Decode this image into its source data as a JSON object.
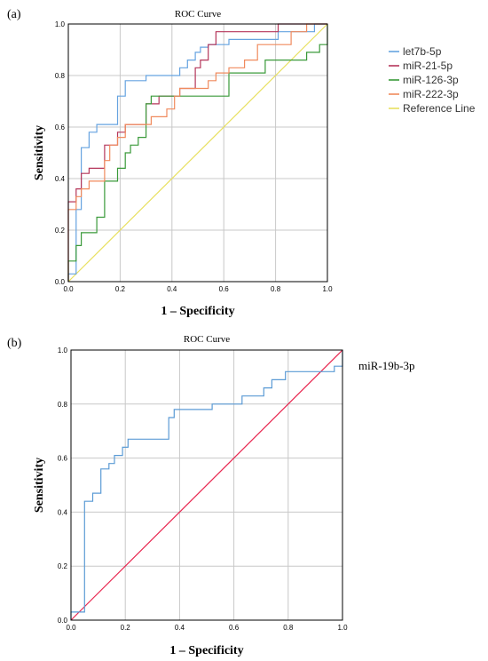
{
  "panels": [
    {
      "label": "(a)"
    },
    {
      "label": "(b)"
    }
  ],
  "chart_data": [
    {
      "type": "line",
      "title": "ROC Curve",
      "xlabel": "1 – Specificity",
      "ylabel": "Sensitivity",
      "xlim": [
        0,
        1
      ],
      "ylim": [
        0,
        1
      ],
      "x_ticks": [
        "0.0",
        "0.2",
        "0.4",
        "0.6",
        "0.8",
        "1.0"
      ],
      "y_ticks": [
        "0.0",
        "0.2",
        "0.4",
        "0.6",
        "0.8",
        "1.0"
      ],
      "grid": true,
      "legend": "right",
      "series": [
        {
          "name": "let7b-5p",
          "color": "#66a3e0",
          "step": true,
          "points": [
            [
              0,
              0
            ],
            [
              0,
              0.03
            ],
            [
              0.03,
              0.03
            ],
            [
              0.03,
              0.28
            ],
            [
              0.05,
              0.28
            ],
            [
              0.05,
              0.52
            ],
            [
              0.08,
              0.52
            ],
            [
              0.08,
              0.58
            ],
            [
              0.11,
              0.58
            ],
            [
              0.11,
              0.61
            ],
            [
              0.19,
              0.61
            ],
            [
              0.19,
              0.72
            ],
            [
              0.22,
              0.72
            ],
            [
              0.22,
              0.78
            ],
            [
              0.3,
              0.78
            ],
            [
              0.3,
              0.8
            ],
            [
              0.43,
              0.8
            ],
            [
              0.43,
              0.83
            ],
            [
              0.46,
              0.83
            ],
            [
              0.46,
              0.86
            ],
            [
              0.49,
              0.86
            ],
            [
              0.49,
              0.89
            ],
            [
              0.51,
              0.89
            ],
            [
              0.51,
              0.91
            ],
            [
              0.54,
              0.91
            ],
            [
              0.54,
              0.92
            ],
            [
              0.62,
              0.92
            ],
            [
              0.62,
              0.94
            ],
            [
              0.81,
              0.94
            ],
            [
              0.81,
              0.97
            ],
            [
              0.95,
              0.97
            ],
            [
              0.95,
              1.0
            ],
            [
              1.0,
              1.0
            ]
          ]
        },
        {
          "name": "miR-21-5p",
          "color": "#b5365a",
          "step": true,
          "points": [
            [
              0,
              0
            ],
            [
              0,
              0.31
            ],
            [
              0.03,
              0.31
            ],
            [
              0.03,
              0.36
            ],
            [
              0.05,
              0.36
            ],
            [
              0.05,
              0.42
            ],
            [
              0.08,
              0.42
            ],
            [
              0.08,
              0.44
            ],
            [
              0.14,
              0.44
            ],
            [
              0.14,
              0.53
            ],
            [
              0.19,
              0.53
            ],
            [
              0.19,
              0.58
            ],
            [
              0.22,
              0.58
            ],
            [
              0.22,
              0.61
            ],
            [
              0.3,
              0.61
            ],
            [
              0.3,
              0.69
            ],
            [
              0.35,
              0.69
            ],
            [
              0.35,
              0.72
            ],
            [
              0.43,
              0.72
            ],
            [
              0.43,
              0.75
            ],
            [
              0.49,
              0.75
            ],
            [
              0.49,
              0.83
            ],
            [
              0.51,
              0.83
            ],
            [
              0.51,
              0.86
            ],
            [
              0.54,
              0.86
            ],
            [
              0.54,
              0.92
            ],
            [
              0.57,
              0.92
            ],
            [
              0.57,
              0.97
            ],
            [
              0.81,
              0.97
            ],
            [
              0.81,
              1.0
            ],
            [
              1.0,
              1.0
            ]
          ]
        },
        {
          "name": "miR-126-3p",
          "color": "#3a9a3a",
          "step": true,
          "points": [
            [
              0,
              0
            ],
            [
              0,
              0.08
            ],
            [
              0.03,
              0.08
            ],
            [
              0.03,
              0.14
            ],
            [
              0.05,
              0.14
            ],
            [
              0.05,
              0.19
            ],
            [
              0.11,
              0.19
            ],
            [
              0.11,
              0.25
            ],
            [
              0.14,
              0.25
            ],
            [
              0.14,
              0.39
            ],
            [
              0.19,
              0.39
            ],
            [
              0.19,
              0.44
            ],
            [
              0.22,
              0.44
            ],
            [
              0.22,
              0.5
            ],
            [
              0.24,
              0.5
            ],
            [
              0.24,
              0.53
            ],
            [
              0.27,
              0.53
            ],
            [
              0.27,
              0.56
            ],
            [
              0.3,
              0.56
            ],
            [
              0.3,
              0.69
            ],
            [
              0.32,
              0.69
            ],
            [
              0.32,
              0.72
            ],
            [
              0.62,
              0.72
            ],
            [
              0.62,
              0.81
            ],
            [
              0.76,
              0.81
            ],
            [
              0.76,
              0.86
            ],
            [
              0.92,
              0.86
            ],
            [
              0.92,
              0.89
            ],
            [
              0.97,
              0.89
            ],
            [
              0.97,
              0.92
            ],
            [
              1.0,
              0.92
            ],
            [
              1.0,
              1.0
            ]
          ]
        },
        {
          "name": "miR-222-3p",
          "color": "#f08a5d",
          "step": true,
          "points": [
            [
              0,
              0
            ],
            [
              0,
              0.28
            ],
            [
              0.03,
              0.28
            ],
            [
              0.03,
              0.33
            ],
            [
              0.05,
              0.33
            ],
            [
              0.05,
              0.36
            ],
            [
              0.08,
              0.36
            ],
            [
              0.08,
              0.39
            ],
            [
              0.14,
              0.39
            ],
            [
              0.14,
              0.47
            ],
            [
              0.16,
              0.47
            ],
            [
              0.16,
              0.53
            ],
            [
              0.19,
              0.53
            ],
            [
              0.19,
              0.56
            ],
            [
              0.22,
              0.56
            ],
            [
              0.22,
              0.61
            ],
            [
              0.32,
              0.61
            ],
            [
              0.32,
              0.64
            ],
            [
              0.38,
              0.64
            ],
            [
              0.38,
              0.67
            ],
            [
              0.41,
              0.67
            ],
            [
              0.41,
              0.72
            ],
            [
              0.43,
              0.72
            ],
            [
              0.43,
              0.75
            ],
            [
              0.54,
              0.75
            ],
            [
              0.54,
              0.78
            ],
            [
              0.57,
              0.78
            ],
            [
              0.57,
              0.81
            ],
            [
              0.62,
              0.81
            ],
            [
              0.62,
              0.83
            ],
            [
              0.68,
              0.83
            ],
            [
              0.68,
              0.86
            ],
            [
              0.73,
              0.86
            ],
            [
              0.73,
              0.92
            ],
            [
              0.86,
              0.92
            ],
            [
              0.86,
              0.97
            ],
            [
              0.92,
              0.97
            ],
            [
              0.92,
              1.0
            ],
            [
              1.0,
              1.0
            ]
          ]
        },
        {
          "name": "Reference Line",
          "color": "#e8e060",
          "step": false,
          "points": [
            [
              0,
              0
            ],
            [
              1,
              1
            ]
          ]
        }
      ]
    },
    {
      "type": "line",
      "title": "ROC Curve",
      "xlabel": "1 – Specificity",
      "ylabel": "Sensitivity",
      "xlim": [
        0,
        1
      ],
      "ylim": [
        0,
        1
      ],
      "x_ticks": [
        "0.0",
        "0.2",
        "0.4",
        "0.6",
        "0.8",
        "1.0"
      ],
      "y_ticks": [
        "0.0",
        "0.2",
        "0.4",
        "0.6",
        "0.8",
        "1.0"
      ],
      "grid": true,
      "legend": "right",
      "series": [
        {
          "name": "miR-19b-3p",
          "color": "#5b9bd5",
          "step": true,
          "points": [
            [
              0,
              0
            ],
            [
              0,
              0.03
            ],
            [
              0.05,
              0.03
            ],
            [
              0.05,
              0.44
            ],
            [
              0.08,
              0.44
            ],
            [
              0.08,
              0.47
            ],
            [
              0.11,
              0.47
            ],
            [
              0.11,
              0.56
            ],
            [
              0.14,
              0.56
            ],
            [
              0.14,
              0.58
            ],
            [
              0.16,
              0.58
            ],
            [
              0.16,
              0.61
            ],
            [
              0.19,
              0.61
            ],
            [
              0.19,
              0.64
            ],
            [
              0.21,
              0.64
            ],
            [
              0.21,
              0.67
            ],
            [
              0.36,
              0.67
            ],
            [
              0.36,
              0.75
            ],
            [
              0.38,
              0.75
            ],
            [
              0.38,
              0.78
            ],
            [
              0.52,
              0.78
            ],
            [
              0.52,
              0.8
            ],
            [
              0.63,
              0.8
            ],
            [
              0.63,
              0.83
            ],
            [
              0.71,
              0.83
            ],
            [
              0.71,
              0.86
            ],
            [
              0.74,
              0.86
            ],
            [
              0.74,
              0.89
            ],
            [
              0.79,
              0.89
            ],
            [
              0.79,
              0.92
            ],
            [
              0.97,
              0.92
            ],
            [
              0.97,
              0.94
            ],
            [
              1.0,
              0.94
            ],
            [
              1.0,
              1.0
            ]
          ]
        },
        {
          "color": "#e8264f",
          "step": false,
          "points": [
            [
              0,
              0
            ],
            [
              1,
              1
            ]
          ]
        }
      ]
    }
  ]
}
